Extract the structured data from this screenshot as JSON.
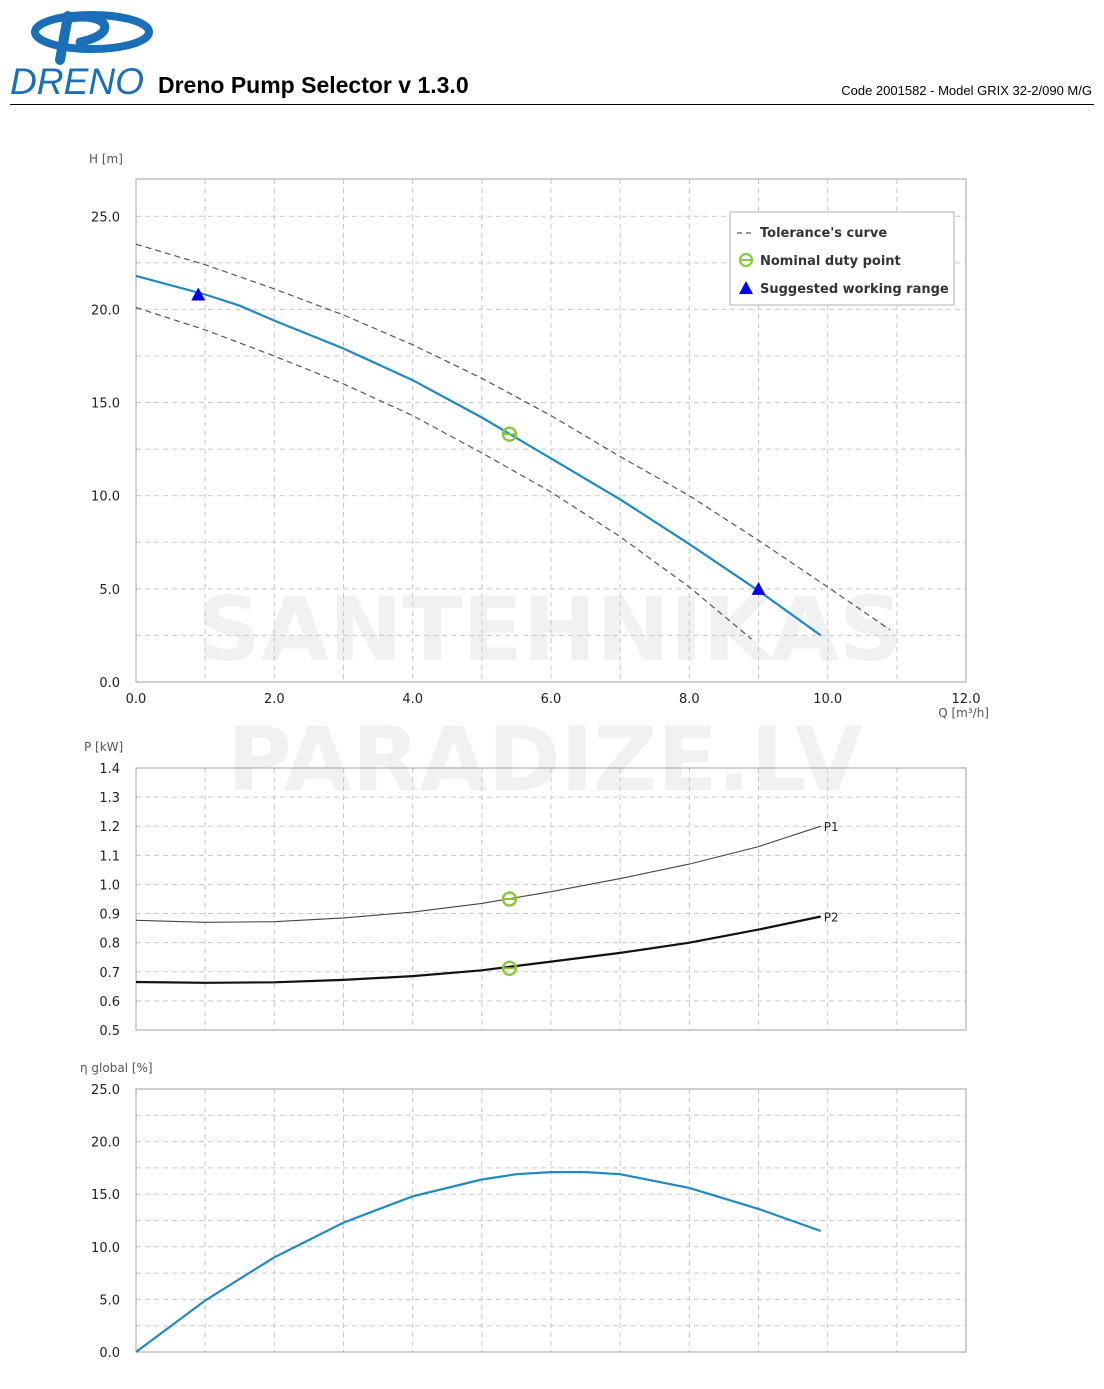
{
  "header": {
    "logo_text": "DRENO",
    "app_title": "Dreno Pump Selector v 1.3.0",
    "model_code": "Code 2001582 - Model GRIX 32-2/090 M/G"
  },
  "watermark": {
    "line1": "SANTEHNIKAS",
    "line2": "PARADIZE.LV"
  },
  "colors": {
    "main_curve": "#1f8ac0",
    "tolerance": "#555555",
    "duty_point": "#8cc63f",
    "working_range": "#0000ee",
    "power_p1": "#444444",
    "power_p2": "#111111",
    "grid": "#c8c8c8",
    "frame": "#a0a0a0"
  },
  "legend": {
    "items": [
      {
        "label": "Tolerance's curve",
        "symbol": "dash"
      },
      {
        "label": "Nominal duty point",
        "symbol": "circle"
      },
      {
        "label": "Suggested working range",
        "symbol": "triangle"
      }
    ]
  },
  "chart_data": [
    {
      "type": "line",
      "id": "head",
      "ylabel": "H [m]",
      "xlabel": "Q [m³/h]",
      "xlim": [
        0,
        12
      ],
      "ylim": [
        0,
        27
      ],
      "x_ticks": [
        "0.0",
        "2.0",
        "4.0",
        "6.0",
        "8.0",
        "10.0",
        "12.0"
      ],
      "y_ticks": [
        "0.0",
        "5.0",
        "10.0",
        "15.0",
        "20.0",
        "25.0"
      ],
      "grid": true,
      "legend_position": "top-right",
      "series": [
        {
          "role": "main",
          "x": [
            0,
            1,
            1.5,
            2,
            3,
            4,
            5,
            6,
            7,
            8,
            9,
            9.9
          ],
          "y": [
            21.8,
            20.8,
            20.2,
            19.4,
            17.9,
            16.2,
            14.2,
            12.0,
            9.8,
            7.4,
            4.9,
            2.5
          ]
        },
        {
          "role": "tolerance",
          "x": [
            0,
            1,
            2,
            3,
            4,
            5,
            6,
            7,
            8,
            9,
            10,
            10.9
          ],
          "y": [
            23.5,
            22.4,
            21.1,
            19.7,
            18.1,
            16.3,
            14.3,
            12.1,
            10.0,
            7.6,
            5.1,
            2.8
          ]
        },
        {
          "role": "tolerance",
          "x": [
            0,
            1,
            2,
            3,
            4,
            5,
            6,
            7,
            8,
            8.9
          ],
          "y": [
            20.1,
            18.9,
            17.5,
            16.0,
            14.3,
            12.3,
            10.2,
            7.8,
            5.1,
            2.3
          ]
        }
      ],
      "duty_point": {
        "x": 5.4,
        "y": 13.3
      },
      "working_range": [
        {
          "x": 0.9,
          "y": 20.8
        },
        {
          "x": 9.0,
          "y": 5.0
        }
      ]
    },
    {
      "type": "line",
      "id": "power",
      "ylabel": "P [kW]",
      "xlim": [
        0,
        12
      ],
      "ylim": [
        0.5,
        1.4
      ],
      "y_ticks": [
        "0.5",
        "0.6",
        "0.7",
        "0.8",
        "0.9",
        "1.0",
        "1.1",
        "1.2",
        "1.3",
        "1.4"
      ],
      "grid": true,
      "series": [
        {
          "name": "P1",
          "x": [
            0,
            1,
            2,
            3,
            4,
            5,
            6,
            7,
            8,
            9,
            9.9
          ],
          "y": [
            0.877,
            0.87,
            0.872,
            0.885,
            0.905,
            0.935,
            0.975,
            1.02,
            1.07,
            1.13,
            1.2
          ]
        },
        {
          "name": "P2",
          "x": [
            0,
            1,
            2,
            3,
            4,
            5,
            6,
            7,
            8,
            9,
            9.9
          ],
          "y": [
            0.665,
            0.662,
            0.664,
            0.672,
            0.685,
            0.705,
            0.735,
            0.765,
            0.8,
            0.845,
            0.89
          ]
        }
      ],
      "duty_points": [
        {
          "x": 5.4,
          "y": 0.95
        },
        {
          "x": 5.4,
          "y": 0.712
        }
      ]
    },
    {
      "type": "line",
      "id": "efficiency",
      "ylabel": "η global [%]",
      "xlim": [
        0,
        12
      ],
      "ylim": [
        0,
        25
      ],
      "y_ticks": [
        "0.0",
        "5.0",
        "10.0",
        "15.0",
        "20.0",
        "25.0"
      ],
      "grid": true,
      "series": [
        {
          "role": "main",
          "x": [
            0,
            1,
            2,
            3,
            4,
            5,
            5.5,
            6,
            6.5,
            7,
            8,
            9,
            9.9
          ],
          "y": [
            0,
            4.9,
            9.0,
            12.3,
            14.8,
            16.4,
            16.9,
            17.1,
            17.1,
            16.9,
            15.6,
            13.6,
            11.5
          ]
        }
      ]
    }
  ]
}
